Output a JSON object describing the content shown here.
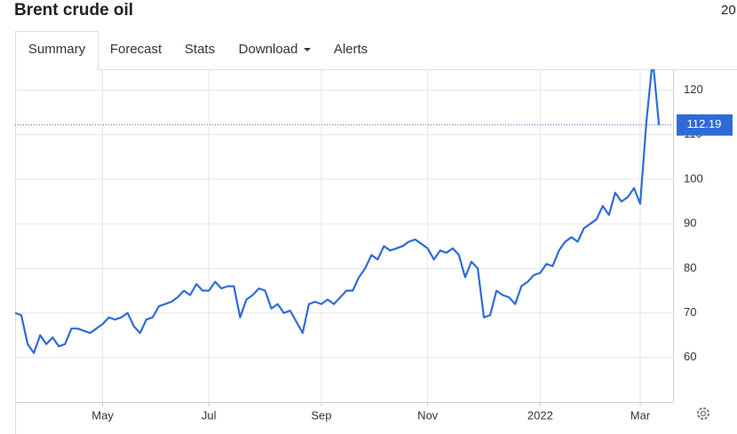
{
  "header": {
    "title": "Brent crude oil",
    "extra": "20"
  },
  "tabs": [
    "Summary",
    "Forecast",
    "Stats",
    "Download",
    "Alerts"
  ],
  "chart_data": {
    "type": "line",
    "categories": [
      null,
      null,
      null,
      null,
      null,
      null,
      null,
      null,
      null,
      null,
      null,
      null,
      null,
      null,
      "May",
      null,
      null,
      null,
      null,
      null,
      null,
      null,
      null,
      null,
      null,
      null,
      null,
      null,
      null,
      null,
      null,
      "Jul",
      null,
      null,
      null,
      null,
      null,
      null,
      null,
      null,
      null,
      null,
      null,
      null,
      null,
      null,
      null,
      null,
      null,
      "Sep",
      null,
      null,
      null,
      null,
      null,
      null,
      null,
      null,
      null,
      null,
      null,
      null,
      null,
      null,
      null,
      null,
      "Nov",
      null,
      null,
      null,
      null,
      null,
      null,
      null,
      null,
      null,
      null,
      null,
      null,
      null,
      null,
      null,
      null,
      null,
      "2022",
      null,
      null,
      null,
      null,
      null,
      null,
      null,
      null,
      null,
      null,
      null,
      null,
      null,
      null,
      null,
      "Mar",
      null,
      null,
      null
    ],
    "values": [
      70,
      69.5,
      63,
      61,
      65,
      63,
      64.5,
      62.5,
      63,
      66.5,
      66.5,
      66,
      65.5,
      66.5,
      67.5,
      69,
      68.5,
      69,
      70,
      67,
      65.5,
      68.5,
      69,
      71.5,
      72,
      72.5,
      73.5,
      75,
      74,
      76.5,
      75,
      75,
      77,
      75.5,
      76,
      76,
      69,
      73,
      74,
      75.5,
      75,
      71,
      72,
      70,
      70.5,
      68,
      65.5,
      72,
      72.5,
      72,
      73,
      72,
      73.5,
      75,
      75,
      78,
      80,
      83,
      82,
      85,
      84,
      84.5,
      85,
      86,
      86.5,
      85.5,
      84.5,
      82,
      84,
      83.5,
      84.5,
      83,
      78,
      81.5,
      80,
      69,
      69.5,
      75,
      74,
      73.5,
      72,
      76,
      77,
      78.5,
      79,
      81,
      80.5,
      84,
      86,
      87,
      86,
      89,
      90,
      91,
      94,
      92,
      97,
      95,
      96,
      98,
      94.5,
      113,
      127,
      112.19
    ],
    "color": "#2f6bd8",
    "ylim": [
      50,
      124.7
    ],
    "yticks": [
      60,
      70,
      80,
      90,
      100,
      110,
      120
    ],
    "grid": true
  }
}
